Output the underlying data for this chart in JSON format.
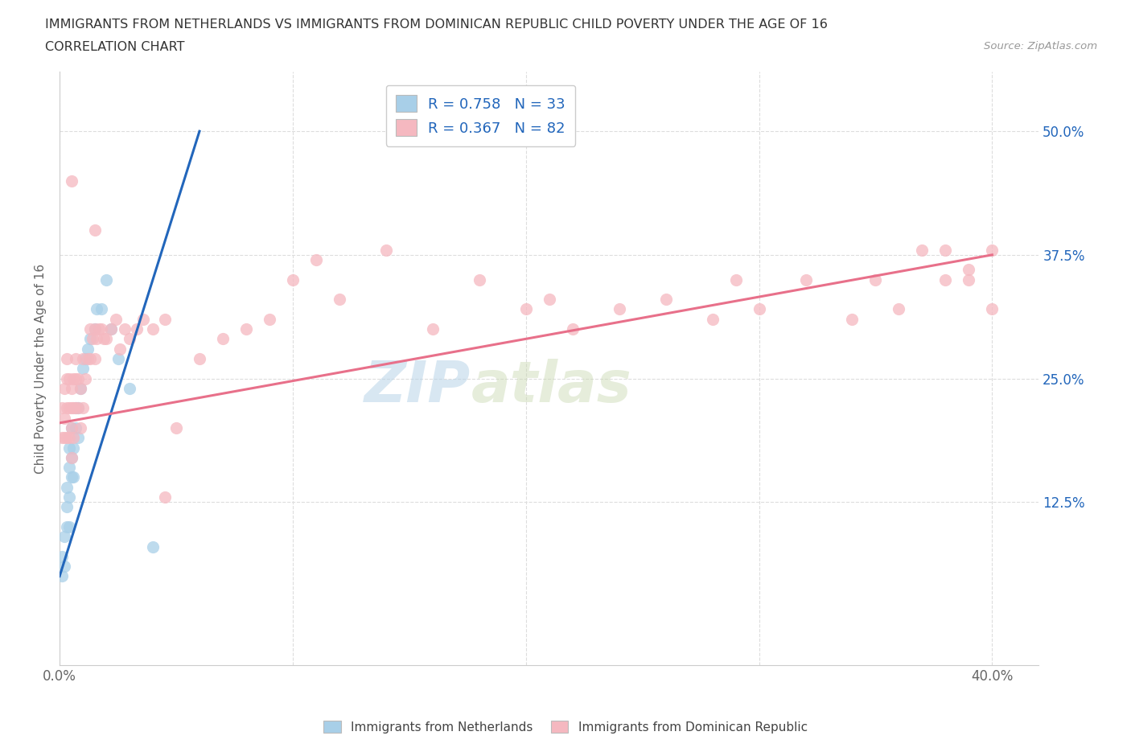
{
  "title_line1": "IMMIGRANTS FROM NETHERLANDS VS IMMIGRANTS FROM DOMINICAN REPUBLIC CHILD POVERTY UNDER THE AGE OF 16",
  "title_line2": "CORRELATION CHART",
  "source_text": "Source: ZipAtlas.com",
  "ylabel": "Child Poverty Under the Age of 16",
  "xlim": [
    0.0,
    0.42
  ],
  "ylim": [
    -0.04,
    0.56
  ],
  "xticks": [
    0.0,
    0.1,
    0.2,
    0.3,
    0.4
  ],
  "xtick_labels": [
    "0.0%",
    "",
    "",
    "",
    "40.0%"
  ],
  "ytick_vals_right": [
    0.125,
    0.25,
    0.375,
    0.5
  ],
  "ytick_labels_right": [
    "12.5%",
    "25.0%",
    "37.5%",
    "50.0%"
  ],
  "color_netherlands": "#a8cfe8",
  "color_dom_rep": "#f5b8c0",
  "color_netherlands_line": "#2266bb",
  "color_dom_rep_line": "#e8708a",
  "R_netherlands": 0.758,
  "N_netherlands": 33,
  "R_dom_rep": 0.367,
  "N_dom_rep": 82,
  "nl_trend_x": [
    0.0,
    0.06
  ],
  "nl_trend_y": [
    0.05,
    0.5
  ],
  "dr_trend_x": [
    0.0,
    0.4
  ],
  "dr_trend_y": [
    0.205,
    0.375
  ],
  "netherlands_x": [
    0.001,
    0.001,
    0.002,
    0.002,
    0.003,
    0.003,
    0.003,
    0.004,
    0.004,
    0.004,
    0.004,
    0.005,
    0.005,
    0.005,
    0.006,
    0.006,
    0.007,
    0.007,
    0.008,
    0.008,
    0.009,
    0.01,
    0.011,
    0.012,
    0.013,
    0.015,
    0.016,
    0.018,
    0.02,
    0.022,
    0.025,
    0.03,
    0.04
  ],
  "netherlands_y": [
    0.05,
    0.07,
    0.06,
    0.09,
    0.1,
    0.12,
    0.14,
    0.1,
    0.13,
    0.16,
    0.18,
    0.15,
    0.17,
    0.2,
    0.15,
    0.18,
    0.2,
    0.22,
    0.19,
    0.22,
    0.24,
    0.26,
    0.27,
    0.28,
    0.29,
    0.3,
    0.32,
    0.32,
    0.35,
    0.3,
    0.27,
    0.24,
    0.08
  ],
  "dom_rep_x": [
    0.001,
    0.001,
    0.002,
    0.002,
    0.002,
    0.003,
    0.003,
    0.003,
    0.003,
    0.004,
    0.004,
    0.004,
    0.005,
    0.005,
    0.005,
    0.005,
    0.006,
    0.006,
    0.006,
    0.007,
    0.007,
    0.007,
    0.008,
    0.008,
    0.009,
    0.009,
    0.01,
    0.01,
    0.011,
    0.012,
    0.013,
    0.013,
    0.014,
    0.015,
    0.015,
    0.016,
    0.017,
    0.018,
    0.019,
    0.02,
    0.022,
    0.024,
    0.026,
    0.028,
    0.03,
    0.033,
    0.036,
    0.04,
    0.045,
    0.05,
    0.06,
    0.07,
    0.08,
    0.09,
    0.1,
    0.11,
    0.12,
    0.14,
    0.16,
    0.18,
    0.2,
    0.21,
    0.22,
    0.24,
    0.26,
    0.28,
    0.29,
    0.3,
    0.32,
    0.34,
    0.35,
    0.36,
    0.37,
    0.38,
    0.38,
    0.39,
    0.39,
    0.4,
    0.4,
    0.005,
    0.015,
    0.045
  ],
  "dom_rep_y": [
    0.19,
    0.22,
    0.19,
    0.21,
    0.24,
    0.19,
    0.22,
    0.25,
    0.27,
    0.19,
    0.22,
    0.25,
    0.17,
    0.2,
    0.22,
    0.24,
    0.19,
    0.22,
    0.25,
    0.22,
    0.25,
    0.27,
    0.22,
    0.25,
    0.2,
    0.24,
    0.22,
    0.27,
    0.25,
    0.27,
    0.27,
    0.3,
    0.29,
    0.27,
    0.3,
    0.29,
    0.3,
    0.3,
    0.29,
    0.29,
    0.3,
    0.31,
    0.28,
    0.3,
    0.29,
    0.3,
    0.31,
    0.3,
    0.31,
    0.2,
    0.27,
    0.29,
    0.3,
    0.31,
    0.35,
    0.37,
    0.33,
    0.38,
    0.3,
    0.35,
    0.32,
    0.33,
    0.3,
    0.32,
    0.33,
    0.31,
    0.35,
    0.32,
    0.35,
    0.31,
    0.35,
    0.32,
    0.38,
    0.35,
    0.38,
    0.36,
    0.35,
    0.38,
    0.32,
    0.45,
    0.4,
    0.13
  ],
  "watermark_zip": "ZIP",
  "watermark_atlas": "atlas",
  "background_color": "#ffffff",
  "grid_color": "#dddddd"
}
